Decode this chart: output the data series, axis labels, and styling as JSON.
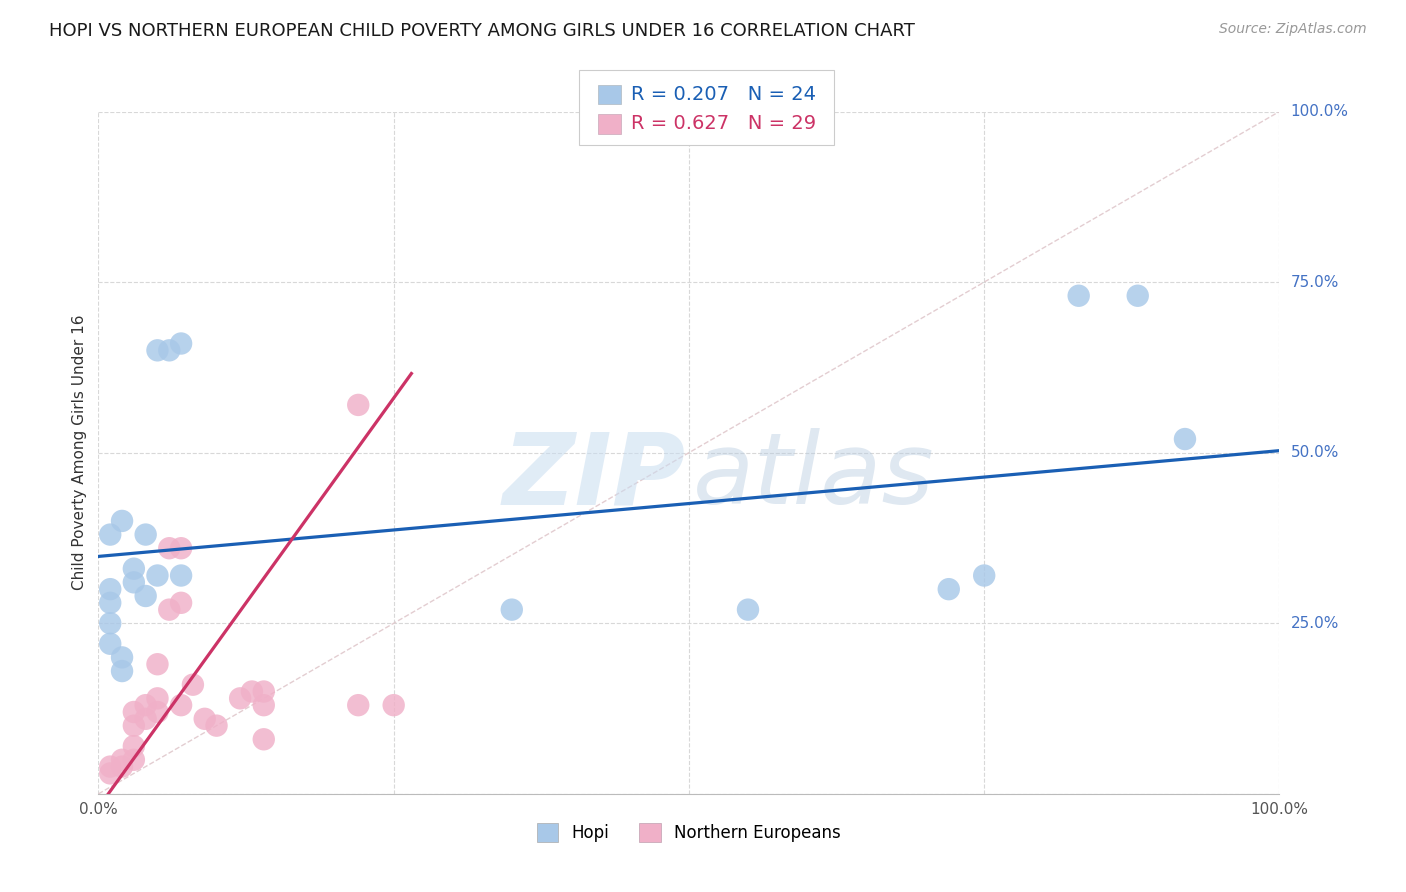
{
  "title": "HOPI VS NORTHERN EUROPEAN CHILD POVERTY AMONG GIRLS UNDER 16 CORRELATION CHART",
  "source": "Source: ZipAtlas.com",
  "ylabel": "Child Poverty Among Girls Under 16",
  "xlim": [
    0,
    1
  ],
  "ylim": [
    0,
    1
  ],
  "hopi_R": 0.207,
  "hopi_N": 24,
  "ne_R": 0.627,
  "ne_N": 29,
  "hopi_color": "#a8c8e8",
  "ne_color": "#f0b0c8",
  "hopi_line_color": "#1a5fb4",
  "ne_line_color": "#cc3366",
  "diagonal_color": "#e0c8cc",
  "right_tick_color": "#4472c4",
  "hopi_x": [
    0.01,
    0.02,
    0.01,
    0.01,
    0.01,
    0.01,
    0.02,
    0.02,
    0.03,
    0.03,
    0.04,
    0.04,
    0.05,
    0.05,
    0.06,
    0.07,
    0.07,
    0.35,
    0.55,
    0.72,
    0.75,
    0.83,
    0.88,
    0.92
  ],
  "hopi_y": [
    0.38,
    0.4,
    0.3,
    0.28,
    0.25,
    0.22,
    0.2,
    0.18,
    0.31,
    0.33,
    0.29,
    0.38,
    0.32,
    0.65,
    0.65,
    0.66,
    0.32,
    0.27,
    0.27,
    0.3,
    0.32,
    0.73,
    0.73,
    0.52
  ],
  "ne_x": [
    0.01,
    0.01,
    0.02,
    0.02,
    0.03,
    0.03,
    0.03,
    0.03,
    0.04,
    0.04,
    0.05,
    0.05,
    0.05,
    0.06,
    0.06,
    0.07,
    0.07,
    0.07,
    0.08,
    0.09,
    0.1,
    0.12,
    0.13,
    0.14,
    0.14,
    0.22,
    0.22,
    0.25,
    0.14
  ],
  "ne_y": [
    0.03,
    0.04,
    0.04,
    0.05,
    0.05,
    0.07,
    0.1,
    0.12,
    0.11,
    0.13,
    0.12,
    0.14,
    0.19,
    0.27,
    0.36,
    0.13,
    0.28,
    0.36,
    0.16,
    0.11,
    0.1,
    0.14,
    0.15,
    0.13,
    0.15,
    0.13,
    0.57,
    0.13,
    0.08
  ],
  "hopi_intercept": 0.348,
  "hopi_slope": 0.155,
  "ne_intercept": -0.02,
  "ne_slope": 2.4,
  "ne_line_xmax": 0.265,
  "background_color": "#ffffff",
  "grid_color": "#d8d8d8",
  "title_fontsize": 13,
  "source_fontsize": 10,
  "ylabel_fontsize": 11,
  "tick_fontsize": 11,
  "legend_entry_fontsize": 14,
  "watermark_zip_color": "#c8ddf0",
  "watermark_atlas_color": "#b8cce0"
}
